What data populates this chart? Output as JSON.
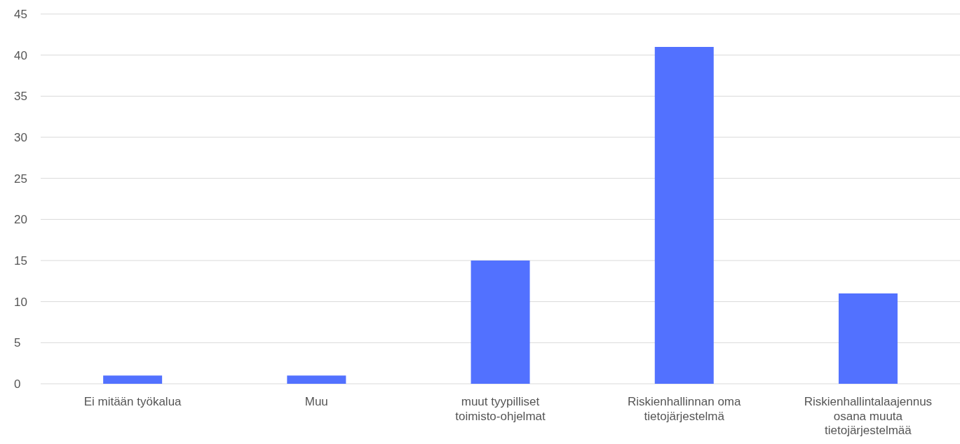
{
  "chart_data": {
    "type": "bar",
    "categories": [
      "Ei mitään työkalua",
      "Muu",
      "muut tyypilliset toimisto-ohjelmat",
      "Riskienhallinnan oma tietojärjestelmä",
      "Riskienhallintalaajennus osana muuta tietojärjestelmää"
    ],
    "values": [
      1,
      1,
      15,
      41,
      11
    ],
    "color": "#5271ff",
    "ylim": [
      0,
      45
    ],
    "yticks": [
      0,
      5,
      10,
      15,
      20,
      25,
      30,
      35,
      40,
      45
    ],
    "grid": "y"
  }
}
